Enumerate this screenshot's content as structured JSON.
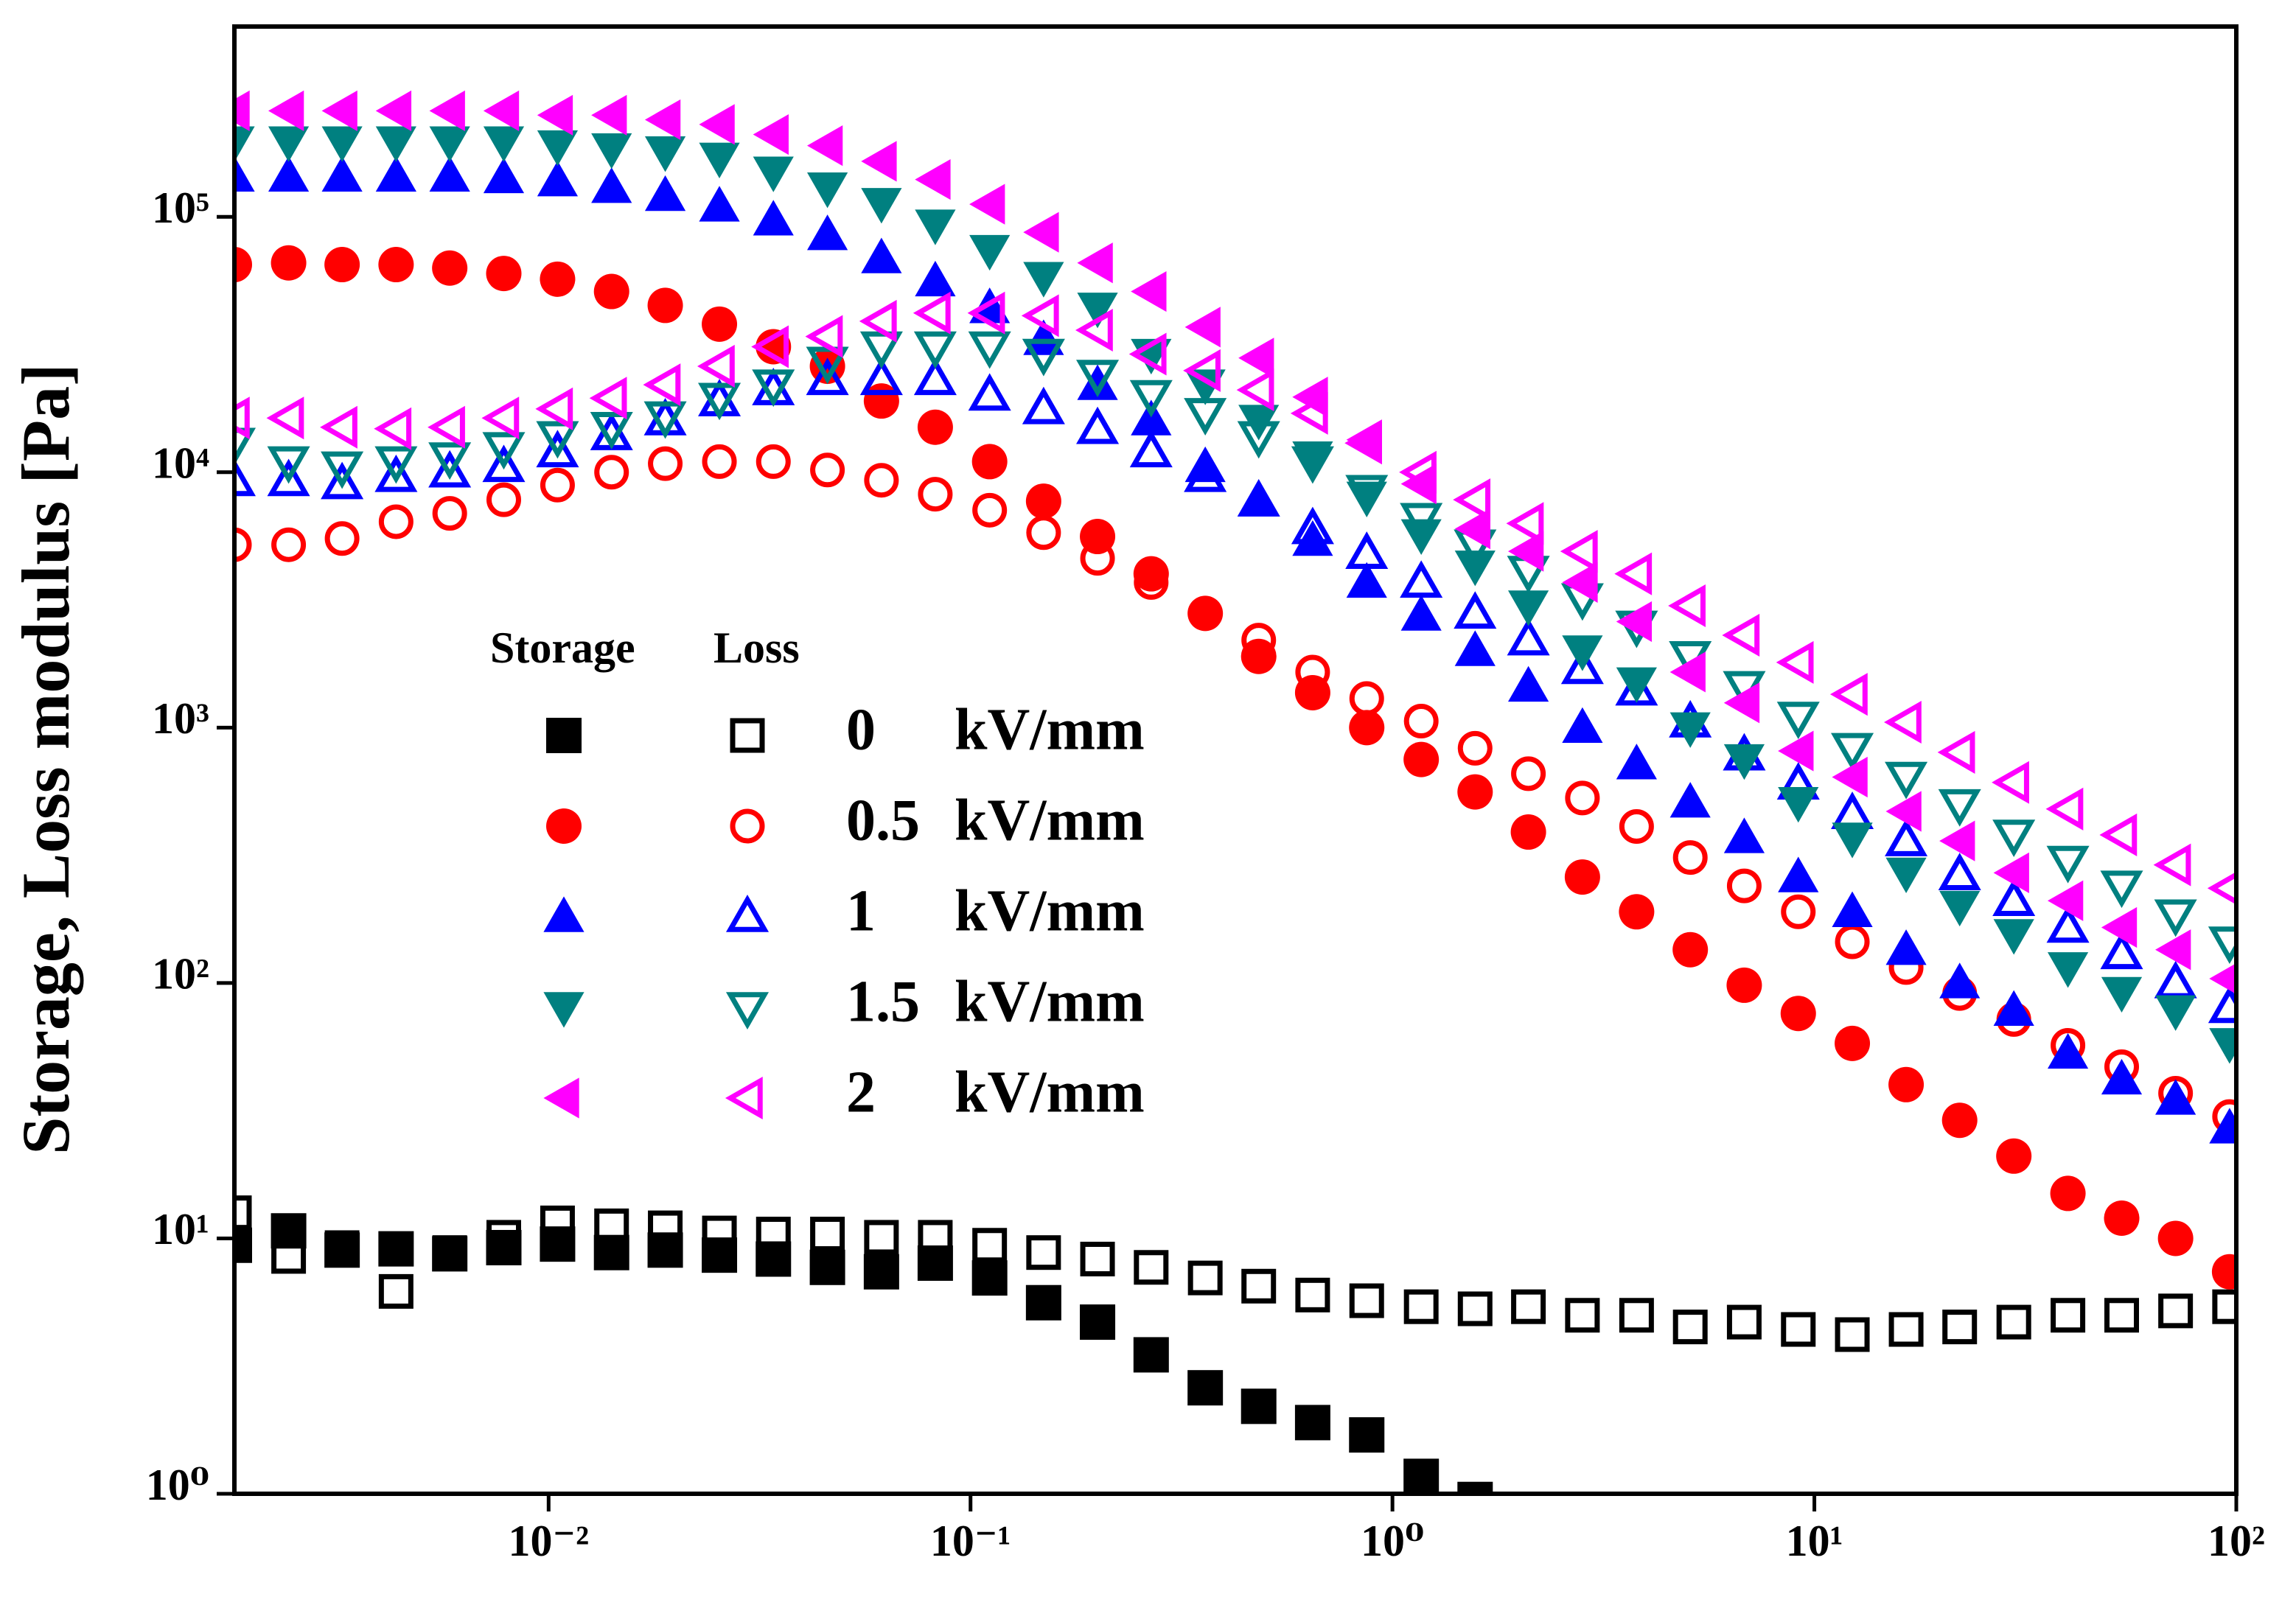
{
  "chart_data": {
    "type": "scatter",
    "ylabel": "Storage, Loss modulus [Pa]",
    "xscale": "log",
    "yscale": "log",
    "xlim": [
      0.0018,
      100
    ],
    "ylim": [
      1,
      556000
    ],
    "xticks": [
      {
        "value": 0.01,
        "label": "10⁻²"
      },
      {
        "value": 0.1,
        "label": "10⁻¹"
      },
      {
        "value": 1,
        "label": "10⁰"
      },
      {
        "value": 10,
        "label": "10¹"
      },
      {
        "value": 100,
        "label": "10²"
      }
    ],
    "yticks": [
      {
        "value": 1,
        "label": "10⁰"
      },
      {
        "value": 10,
        "label": "10¹"
      },
      {
        "value": 100,
        "label": "10²"
      },
      {
        "value": 1000,
        "label": "10³"
      },
      {
        "value": 10000,
        "label": "10⁴"
      },
      {
        "value": 100000,
        "label": "10⁵"
      }
    ],
    "legend_headers": [
      "Storage",
      "Loss"
    ],
    "legend_unit": "kV/mm",
    "x": [
      0.0018,
      0.00242,
      0.00324,
      0.00435,
      0.00583,
      0.00783,
      0.0105,
      0.0141,
      0.0189,
      0.0254,
      0.0341,
      0.0458,
      0.0615,
      0.0825,
      0.111,
      0.149,
      0.2,
      0.268,
      0.36,
      0.482,
      0.647,
      0.869,
      1.17,
      1.57,
      2.1,
      2.82,
      3.79,
      5.08,
      6.82,
      9.16,
      12.3,
      16.5,
      22.1,
      29.7,
      39.9,
      53.5,
      71.8,
      96.4
    ],
    "series": [
      {
        "name": "0",
        "color": "#000000",
        "marker": "square",
        "storage": [
          9.4,
          10.7,
          9.0,
          9.1,
          8.7,
          9.2,
          9.5,
          8.8,
          9.0,
          8.6,
          8.3,
          7.7,
          7.4,
          8.0,
          7.0,
          5.6,
          4.7,
          3.5,
          2.6,
          2.2,
          1.9,
          1.7,
          1.17,
          0.95,
          null,
          null,
          null,
          null,
          null,
          null,
          null,
          null,
          null,
          null,
          null,
          null,
          null,
          null
        ],
        "loss": [
          12.6,
          8.5,
          9.2,
          6.2,
          8.8,
          10.1,
          11.5,
          11.2,
          11.0,
          10.5,
          10.4,
          10.4,
          10.1,
          10.1,
          9.4,
          8.8,
          8.3,
          7.7,
          7.0,
          6.5,
          6.0,
          5.7,
          5.4,
          5.3,
          5.4,
          5.0,
          5.0,
          4.5,
          4.7,
          4.4,
          4.2,
          4.4,
          4.5,
          4.7,
          5.0,
          5.0,
          5.2,
          5.4
        ]
      },
      {
        "name": "0.5",
        "color": "#ff0000",
        "marker": "circle",
        "storage": [
          65000,
          66000,
          65000,
          65000,
          63000,
          60000,
          57000,
          51000,
          45000,
          38000,
          31000,
          26000,
          19000,
          15000,
          11000,
          7700,
          5600,
          4000,
          2800,
          1900,
          1370,
          1000,
          750,
          560,
          390,
          260,
          190,
          135,
          98,
          76,
          58,
          40,
          29,
          21,
          15,
          12,
          10,
          7.4
        ],
        "loss": [
          5200,
          5200,
          5500,
          6400,
          6900,
          7800,
          8900,
          10000,
          10800,
          11000,
          11000,
          10200,
          9300,
          8200,
          7100,
          5800,
          4600,
          3700,
          2800,
          2200,
          1650,
          1300,
          1060,
          830,
          660,
          530,
          410,
          310,
          240,
          190,
          145,
          115,
          91,
          72,
          57,
          47,
          37,
          30
        ]
      },
      {
        "name": "1",
        "color": "#0000ff",
        "marker": "triangle-up",
        "storage": [
          144000,
          144000,
          144000,
          144000,
          144000,
          142000,
          138000,
          130000,
          121000,
          110000,
          97000,
          85000,
          69000,
          56000,
          44000,
          33000,
          22000,
          16000,
          10500,
          7700,
          5400,
          3700,
          2750,
          2000,
          1450,
          1000,
          720,
          510,
          370,
          260,
          190,
          135,
          100,
          78,
          53,
          42,
          35,
          27
        ],
        "loss": [
          9250,
          9250,
          9000,
          9600,
          10000,
          10500,
          12000,
          14000,
          16000,
          19000,
          21000,
          23000,
          23000,
          23000,
          20000,
          17700,
          14800,
          12000,
          9600,
          7700,
          6000,
          4800,
          3700,
          2800,
          2200,
          1700,
          1400,
          1050,
          780,
          600,
          460,
          360,
          265,
          210,
          165,
          130,
          100,
          80
        ]
      },
      {
        "name": "1.5",
        "color": "#008080",
        "marker": "triangle-down",
        "storage": [
          197000,
          197000,
          197000,
          197000,
          197000,
          197000,
          190000,
          185000,
          180000,
          170000,
          150000,
          130000,
          113000,
          93000,
          74000,
          58000,
          44000,
          29000,
          22000,
          16000,
          11500,
          8000,
          5700,
          4300,
          3000,
          2000,
          1500,
          1000,
          750,
          510,
          370,
          270,
          200,
          155,
          115,
          92,
          78,
          58
        ],
        "loss": [
          13000,
          11000,
          10500,
          11000,
          11400,
          12500,
          13800,
          15000,
          16500,
          19500,
          22000,
          27000,
          31000,
          31000,
          31000,
          29000,
          24000,
          20000,
          17000,
          13800,
          11000,
          8500,
          6600,
          5200,
          4100,
          3200,
          2500,
          1900,
          1450,
          1100,
          830,
          640,
          500,
          380,
          300,
          240,
          185,
          145
        ]
      },
      {
        "name": "2",
        "color": "#ff00ff",
        "marker": "triangle-left",
        "storage": [
          260000,
          260000,
          260000,
          260000,
          260000,
          260000,
          250000,
          250000,
          240000,
          230000,
          210000,
          190000,
          165000,
          140000,
          112000,
          87000,
          66000,
          51000,
          37000,
          28000,
          19700,
          13400,
          9000,
          6000,
          4900,
          3700,
          2600,
          1650,
          1250,
          810,
          640,
          470,
          360,
          270,
          210,
          165,
          135,
          104
        ],
        "loss": [
          16300,
          16300,
          15000,
          14800,
          15000,
          16300,
          17700,
          19500,
          22000,
          26000,
          31000,
          34000,
          39000,
          42000,
          42000,
          41000,
          36000,
          29000,
          25000,
          21000,
          17000,
          13000,
          10000,
          7800,
          6300,
          4900,
          4000,
          3000,
          2300,
          1800,
          1350,
          1050,
          800,
          610,
          480,
          380,
          290,
          235
        ]
      }
    ]
  }
}
